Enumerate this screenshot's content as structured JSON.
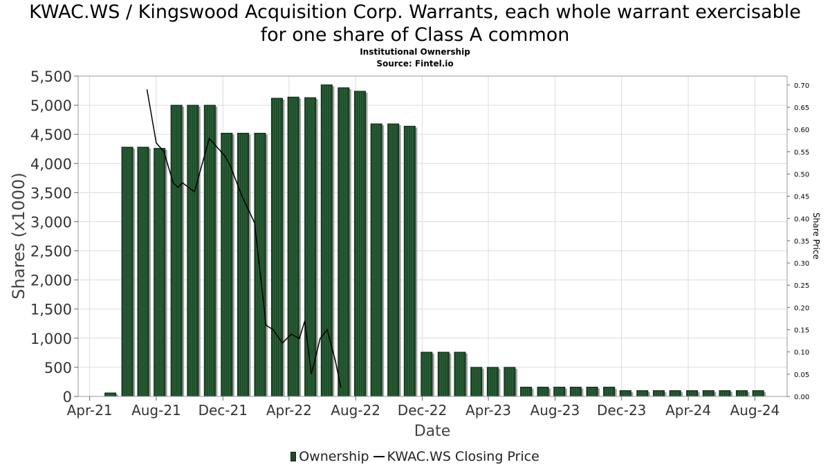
{
  "header": {
    "title_line1": "KWAC.WS / Kingswood Acquisition Corp. Warrants, each whole warrant exercisable",
    "title_line2": "for one share of Class A common",
    "subtitle": "Institutional Ownership",
    "source": "Source: Fintel.io"
  },
  "legend": {
    "ownership_label": "Ownership",
    "price_label": "KWAC.WS Closing Price"
  },
  "colors": {
    "bar_fill": "#1e4a2a",
    "bar_stripe": "#2f6b3c",
    "bar_shadow": "#a0a0a0",
    "price_line": "#000000",
    "grid": "#dcdcdc"
  },
  "chart_data": {
    "type": "bar",
    "title": "KWAC.WS / Kingswood Acquisition Corp. Warrants, each whole warrant exercisable for one share of Class A common",
    "subtitle": "Institutional Ownership",
    "xlabel": "Date",
    "ylabel": "Shares (x1000)",
    "y2label": "Share Price",
    "ylim": [
      0,
      5500
    ],
    "y2lim": [
      0,
      0.72
    ],
    "xlim": [
      "2021-03-11",
      "2024-09-29"
    ],
    "yticks": [
      0,
      500,
      1000,
      1500,
      2000,
      2500,
      3000,
      3500,
      4000,
      4500,
      5000,
      5500
    ],
    "ytick_labels": [
      "0",
      "500",
      "1,000",
      "1,500",
      "2,000",
      "2,500",
      "3,000",
      "3,500",
      "4,000",
      "4,500",
      "5,000",
      "5,500"
    ],
    "y2ticks": [
      0,
      0.05,
      0.1,
      0.15,
      0.2,
      0.25,
      0.3,
      0.35,
      0.4,
      0.45,
      0.5,
      0.55,
      0.6,
      0.65,
      0.7
    ],
    "y2tick_labels": [
      "0.00",
      "0.05",
      "0.10",
      "0.15",
      "0.20",
      "0.25",
      "0.30",
      "0.35",
      "0.40",
      "0.45",
      "0.50",
      "0.55",
      "0.60",
      "0.65",
      "0.70"
    ],
    "xticks": [
      "2021-04-01",
      "2021-08-01",
      "2021-12-01",
      "2022-04-01",
      "2022-08-01",
      "2022-12-01",
      "2023-04-01",
      "2023-08-01",
      "2023-12-01",
      "2024-04-01",
      "2024-08-01"
    ],
    "xtick_labels": [
      "Apr-21",
      "Aug-21",
      "Dec-21",
      "Apr-22",
      "Aug-22",
      "Dec-22",
      "Apr-23",
      "Aug-23",
      "Dec-23",
      "Apr-24",
      "Aug-24"
    ],
    "grid": true,
    "legend_position": "bottom-center",
    "series": [
      {
        "name": "Ownership",
        "type": "bar",
        "axis": "left",
        "x": [
          "2021-05-09",
          "2021-06-09",
          "2021-07-08",
          "2021-08-07",
          "2021-09-07",
          "2021-10-07",
          "2021-11-07",
          "2021-12-08",
          "2022-01-07",
          "2022-02-07",
          "2022-03-10",
          "2022-04-09",
          "2022-05-10",
          "2022-06-09",
          "2022-07-10",
          "2022-08-09",
          "2022-09-08",
          "2022-10-09",
          "2022-11-08",
          "2022-12-09",
          "2023-01-09",
          "2023-02-08",
          "2023-03-10",
          "2023-04-09",
          "2023-05-10",
          "2023-06-09",
          "2023-07-10",
          "2023-08-09",
          "2023-09-08",
          "2023-10-08",
          "2023-11-08",
          "2023-12-08",
          "2024-01-08",
          "2024-02-07",
          "2024-03-08",
          "2024-04-08",
          "2024-05-08",
          "2024-06-07",
          "2024-07-08",
          "2024-08-07"
        ],
        "values": [
          60,
          4280,
          4280,
          4260,
          5000,
          5000,
          5000,
          4520,
          4520,
          4520,
          5120,
          5140,
          5130,
          5350,
          5300,
          5240,
          4680,
          4680,
          4640,
          760,
          760,
          760,
          500,
          500,
          500,
          160,
          160,
          160,
          160,
          160,
          160,
          100,
          100,
          100,
          100,
          100,
          100,
          100,
          100,
          100
        ]
      },
      {
        "name": "KWAC.WS Closing Price",
        "type": "line",
        "axis": "right",
        "x": [
          "2021-07-15",
          "2021-08-01",
          "2021-08-15",
          "2021-09-01",
          "2021-09-10",
          "2021-09-18",
          "2021-10-10",
          "2021-11-06",
          "2021-12-05",
          "2021-12-14",
          "2022-01-05",
          "2022-01-28",
          "2022-02-18",
          "2022-03-03",
          "2022-03-20",
          "2022-04-05",
          "2022-04-20",
          "2022-04-30",
          "2022-05-12",
          "2022-05-28",
          "2022-06-10",
          "2022-06-25",
          "2022-07-05"
        ],
        "values": [
          0.69,
          0.57,
          0.55,
          0.48,
          0.47,
          0.48,
          0.46,
          0.58,
          0.54,
          0.52,
          0.45,
          0.39,
          0.16,
          0.15,
          0.12,
          0.14,
          0.13,
          0.17,
          0.05,
          0.13,
          0.15,
          0.08,
          0.02
        ]
      }
    ]
  }
}
